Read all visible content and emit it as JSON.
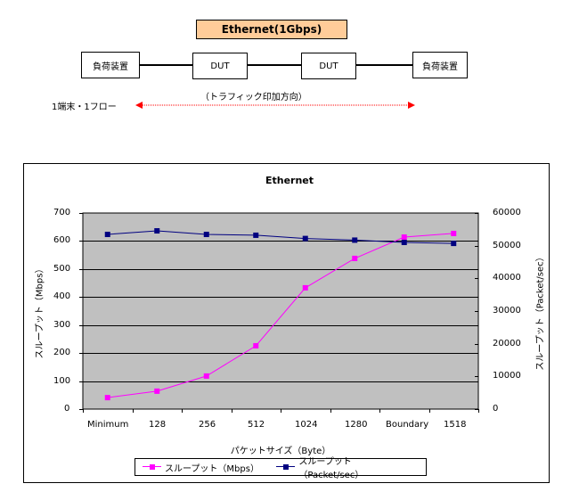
{
  "diagram": {
    "header": "Ethernet(1Gbps)",
    "header_color": "#FFCC99",
    "nodes": [
      {
        "label": "負荷装置"
      },
      {
        "label": "DUT"
      },
      {
        "label": "DUT"
      },
      {
        "label": "負荷装置"
      }
    ],
    "traffic_label": "（トラフィック印加方向）",
    "flow_label": "1端末・1フロー",
    "arrow_color": "#FF0000"
  },
  "chart": {
    "title": "Ethernet",
    "xlabel": "パケットサイズ（Byte）",
    "ylabel_left": "スループット（Mbps）",
    "ylabel_right": "スループット（Packet/sec）",
    "left_ticks": [
      "700",
      "600",
      "500",
      "400",
      "300",
      "200",
      "100",
      "0"
    ],
    "right_ticks": [
      "60000",
      "50000",
      "40000",
      "30000",
      "20000",
      "10000",
      "0"
    ],
    "categories": [
      "Minimum",
      "128",
      "256",
      "512",
      "1024",
      "1280",
      "Boundary",
      "1518"
    ],
    "legend": [
      {
        "label": "スループット（Mbps）",
        "color": "#FF00FF"
      },
      {
        "label": "スループット（Packet/sec）",
        "color": "#000080"
      }
    ],
    "plot_bg": "#C0C0C0"
  },
  "chart_data": {
    "type": "line",
    "title": "Ethernet",
    "xlabel": "パケットサイズ（Byte）",
    "ylabel": "スループット（Mbps）",
    "y2label": "スループット（Packet/sec）",
    "categories": [
      "Minimum",
      "128",
      "256",
      "512",
      "1024",
      "1280",
      "Boundary",
      "1518"
    ],
    "ylim": [
      0,
      700
    ],
    "y2lim": [
      0,
      60000
    ],
    "grid": true,
    "legend_position": "bottom",
    "series": [
      {
        "name": "スループット（Mbps）",
        "axis": "left",
        "color": "#FF00FF",
        "values": [
          41,
          64,
          118,
          226,
          433,
          538,
          614,
          627
        ]
      },
      {
        "name": "スループット（Packet/sec）",
        "axis": "right",
        "color": "#000080",
        "values": [
          53450,
          54540,
          53450,
          53200,
          52200,
          51700,
          51000,
          50700
        ]
      }
    ]
  }
}
